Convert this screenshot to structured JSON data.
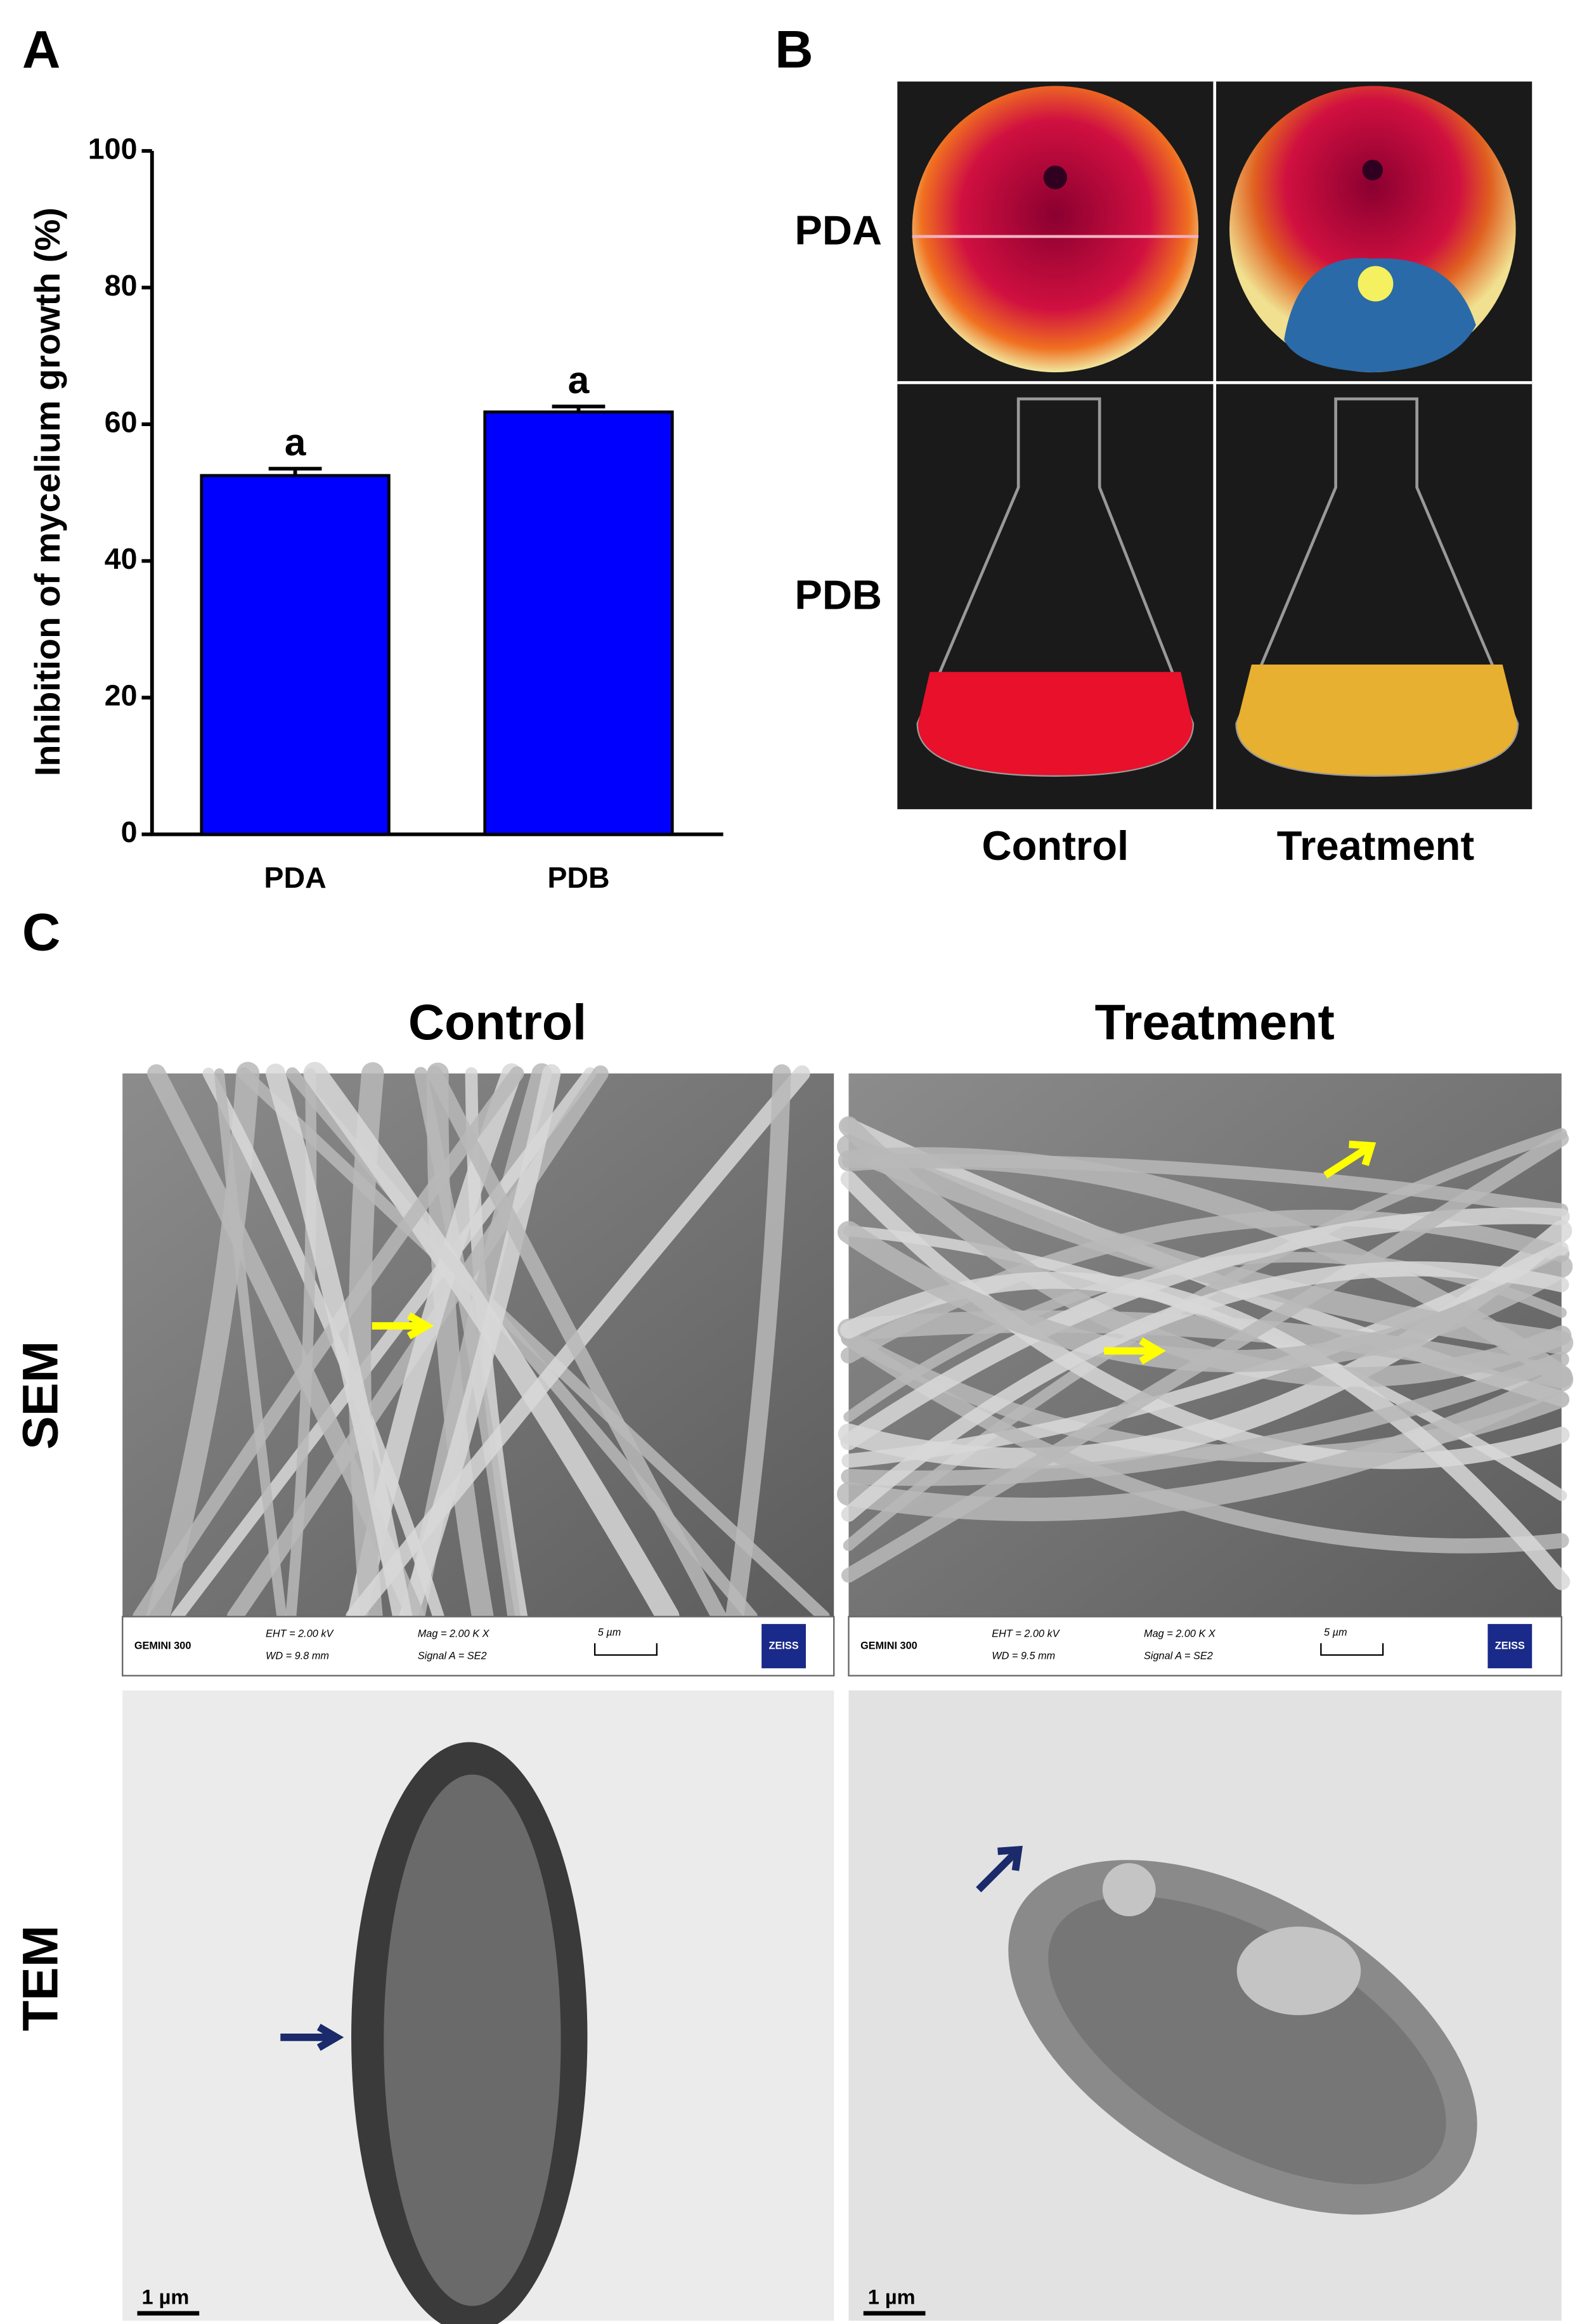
{
  "chart_data": {
    "type": "bar",
    "panel_label": "A",
    "ylabel": "Inhibition of mycelium growth (%)",
    "categories": [
      "PDA",
      "PDB"
    ],
    "values": [
      52.5,
      61.8
    ],
    "errors": [
      1.0,
      0.8
    ],
    "annotations": [
      "a",
      "a"
    ],
    "color": "#0000ff",
    "ylim": [
      0,
      100
    ],
    "yticks": [
      0,
      20,
      40,
      60,
      80,
      100
    ],
    "grid": false
  },
  "panel_b": {
    "label": "B",
    "rows": [
      "PDA",
      "PDB"
    ],
    "columns": [
      "Control",
      "Treatment"
    ]
  },
  "panel_c": {
    "label": "C",
    "columns": [
      "Control",
      "Treatment"
    ],
    "rows": [
      "SEM",
      "TEM"
    ],
    "sem_info": [
      {
        "instrument": "GEMINI 300",
        "eht": "EHT =  2.00 kV",
        "wd": "WD = 9.8 mm",
        "mag": "Mag =    2.00 K X",
        "signal": "Signal A = SE2",
        "scale": "5 µm",
        "brand": "ZEISS"
      },
      {
        "instrument": "GEMINI 300",
        "eht": "EHT =  2.00 kV",
        "wd": "WD = 9.5 mm",
        "mag": "Mag =    2.00 K X",
        "signal": "Signal A = SE2",
        "scale": "5 µm",
        "brand": "ZEISS"
      }
    ],
    "tem_scale": [
      "1 µm",
      "1 µm"
    ]
  }
}
